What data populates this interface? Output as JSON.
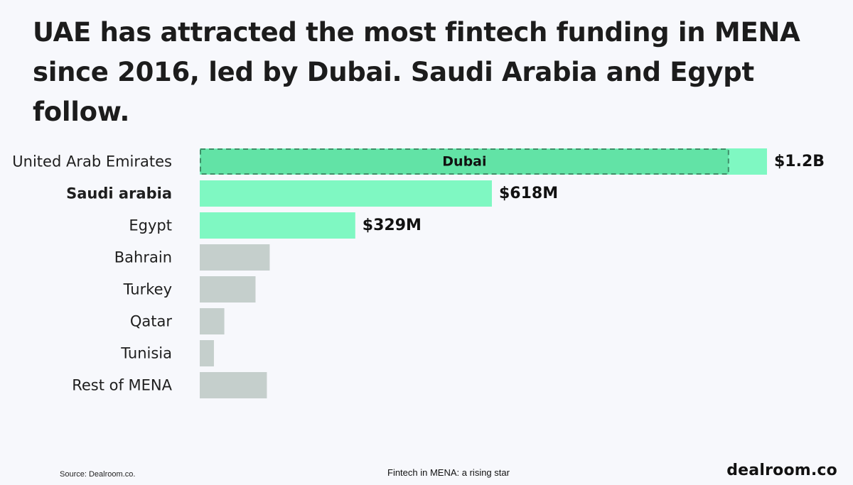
{
  "title": "UAE has attracted the most fintech funding in MENA since 2016, led by Dubai. Saudi Arabia and Egypt follow.",
  "footer": {
    "source": "Source: Dealroom.co.",
    "report_title": "Fintech in MENA: a rising star",
    "logo": "dealroom.co"
  },
  "colors": {
    "highlight": "#7ff8c2",
    "sub_highlight": "#62e3a6",
    "sub_border": "#3f8f69",
    "neutral": "#c5cfcc",
    "background": "#f7f8fc"
  },
  "chart_data": {
    "type": "bar",
    "orientation": "horizontal",
    "categories": [
      "United Arab Emirates",
      "Saudi arabia",
      "Egypt",
      "Bahrain",
      "Turkey",
      "Qatar",
      "Tunisia",
      "Rest of MENA"
    ],
    "values": [
      1200,
      618,
      329,
      148,
      118,
      52,
      30,
      142
    ],
    "units": "USD millions",
    "value_labels": [
      "$1.2B",
      "$618M",
      "$329M",
      "",
      "",
      "",
      "",
      ""
    ],
    "highlighted": [
      true,
      true,
      true,
      false,
      false,
      false,
      false,
      false
    ],
    "bold_categories": [
      false,
      true,
      false,
      false,
      false,
      false,
      false,
      false
    ],
    "sub_segment": {
      "category": "United Arab Emirates",
      "label": "Dubai",
      "value": 1120
    },
    "xlim": [
      0,
      1200
    ],
    "grid": false,
    "legend": "none"
  }
}
